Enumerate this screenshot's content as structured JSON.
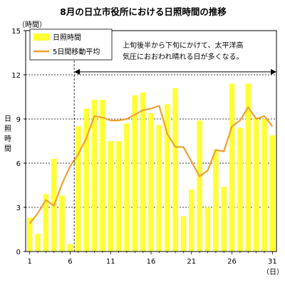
{
  "chart_data": {
    "type": "bar",
    "title": "8月の日立市役所における日照時間の推移",
    "y_unit": "（時間）",
    "ylabel": "日照時間",
    "x_unit": "（日）",
    "ylim": [
      0,
      15
    ],
    "yticks": [
      0,
      3,
      6,
      9,
      12,
      15
    ],
    "x_tick_days": [
      1,
      6,
      11,
      16,
      21,
      26,
      31
    ],
    "days": [
      1,
      2,
      3,
      4,
      5,
      6,
      7,
      8,
      9,
      10,
      11,
      12,
      13,
      14,
      15,
      16,
      17,
      18,
      19,
      20,
      21,
      22,
      23,
      24,
      25,
      26,
      27,
      28,
      29,
      30,
      31
    ],
    "series": [
      {
        "name": "日照時間",
        "kind": "bar",
        "color": "#ffff33",
        "values": [
          2.3,
          1.2,
          3.9,
          6.3,
          3.8,
          0.5,
          8.5,
          9.7,
          10.3,
          10.3,
          7.5,
          7.5,
          8.7,
          10.6,
          10.8,
          9.4,
          8.6,
          10.0,
          11.1,
          2.4,
          4.2,
          8.9,
          3.0,
          6.9,
          4.4,
          11.4,
          8.4,
          11.4,
          9.1,
          9.0,
          7.9
        ]
      },
      {
        "name": "5日間移動平均",
        "kind": "line",
        "color": "#f0a030",
        "values": [
          1.9,
          2.6,
          3.5,
          3.1,
          4.6,
          5.8,
          6.6,
          7.7,
          9.2,
          9.1,
          8.9,
          8.9,
          9.0,
          9.3,
          9.6,
          9.7,
          9.9,
          8.0,
          7.1,
          7.1,
          6.1,
          5.1,
          5.5,
          6.9,
          6.8,
          8.5,
          8.9,
          9.8,
          9.0,
          9.2,
          8.5
        ]
      }
    ],
    "annotation": {
      "lines": [
        "上旬後半から下旬にかけて、太平洋高",
        "気圧におおわれ晴れる日が多くなる。"
      ],
      "from_day": 6.5,
      "to_day": 31.5,
      "at_value": 12.2
    },
    "grid": "y-dashed",
    "legend_position": "top-left"
  }
}
